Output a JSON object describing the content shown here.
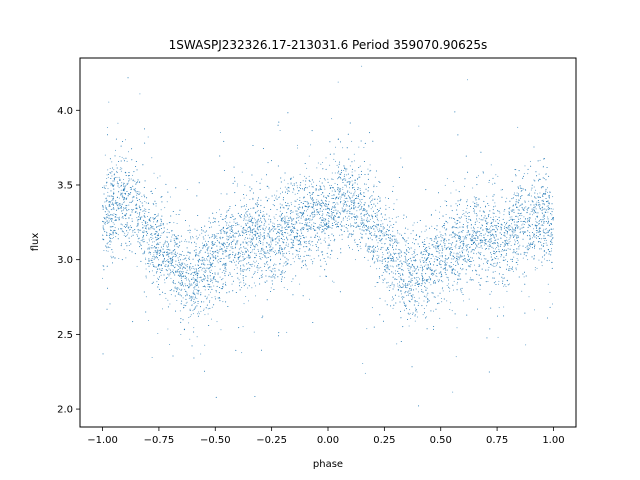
{
  "chart_data": {
    "type": "scatter",
    "title": "1SWASPJ232326.17-213031.6 Period 359070.90625s",
    "xlabel": "phase",
    "ylabel": "flux",
    "xlim": [
      -1.1,
      1.1
    ],
    "ylim": [
      1.88,
      4.35
    ],
    "x_ticks": [
      -1.0,
      -0.75,
      -0.5,
      -0.25,
      0.0,
      0.25,
      0.5,
      0.75,
      1.0
    ],
    "x_tick_labels": [
      "−1.00",
      "−0.75",
      "−0.50",
      "−0.25",
      "0.00",
      "0.25",
      "0.50",
      "0.75",
      "1.00"
    ],
    "y_ticks": [
      2.0,
      2.5,
      3.0,
      3.5,
      4.0
    ],
    "y_tick_labels": [
      "2.0",
      "2.5",
      "3.0",
      "3.5",
      "4.0"
    ],
    "grid": false,
    "series": [
      {
        "color": "#1f77b4",
        "x": [
          -1.0,
          -0.95,
          -0.9,
          -0.85,
          -0.8,
          -0.75,
          -0.7,
          -0.65,
          -0.6,
          -0.55,
          -0.5,
          -0.45,
          -0.4,
          -0.35,
          -0.3,
          -0.25,
          -0.2,
          -0.15,
          -0.1,
          -0.05,
          0.0,
          0.05,
          0.1,
          0.15,
          0.2,
          0.25,
          0.3,
          0.35,
          0.4,
          0.45,
          0.5,
          0.55,
          0.6,
          0.65,
          0.7,
          0.75,
          0.8,
          0.85,
          0.9,
          0.95,
          1.0
        ],
        "y": [
          3.25,
          3.35,
          3.4,
          3.35,
          3.2,
          3.1,
          3.0,
          2.92,
          2.88,
          2.95,
          3.02,
          3.08,
          3.12,
          3.15,
          3.14,
          3.1,
          3.18,
          3.22,
          3.25,
          3.3,
          3.32,
          3.4,
          3.38,
          3.32,
          3.2,
          3.1,
          3.0,
          2.92,
          2.88,
          2.95,
          3.02,
          3.08,
          3.12,
          3.14,
          3.15,
          3.1,
          3.18,
          3.22,
          3.25,
          3.28,
          3.25
        ],
        "scatter_sd": 0.15
      }
    ]
  }
}
